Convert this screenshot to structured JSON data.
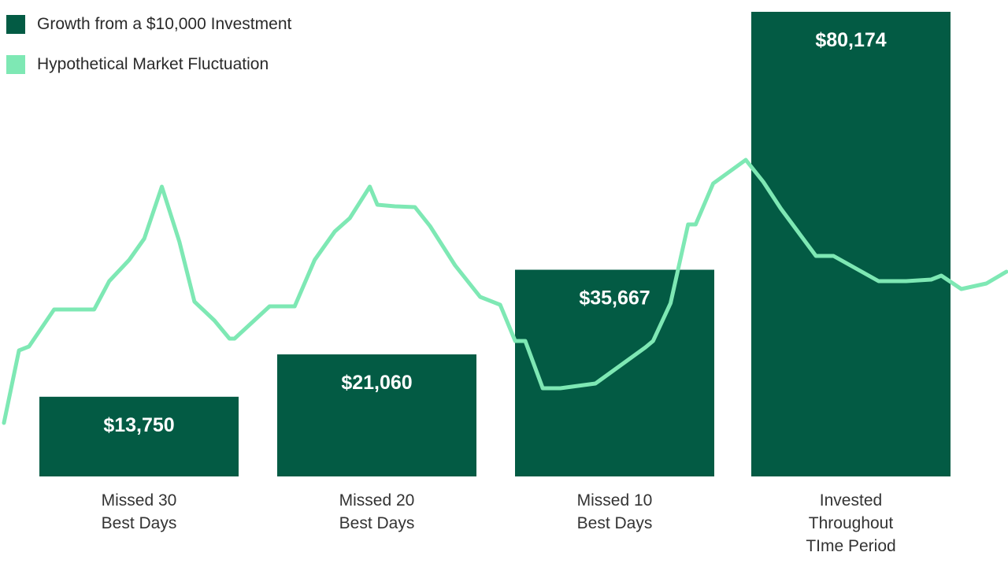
{
  "colors": {
    "bar": "#035b44",
    "line": "#7ee8b4",
    "value_label": "#ffffff",
    "category_label": "#333333"
  },
  "legend": {
    "items": [
      {
        "label": "Growth from a $10,000 Investment",
        "color": "#035b44"
      },
      {
        "label": "Hypothetical Market Fluctuation",
        "color": "#7ee8b4"
      }
    ]
  },
  "chart_data": [
    {
      "type": "bar",
      "title": "",
      "xlabel": "",
      "ylabel": "",
      "ylim": [
        0,
        80174
      ],
      "categories": [
        [
          "Missed 30",
          "Best Days"
        ],
        [
          "Missed 20",
          "Best Days"
        ],
        [
          "Missed 10",
          "Best Days"
        ],
        [
          "Invested",
          "Throughout",
          "TIme Period"
        ]
      ],
      "series": [
        {
          "name": "Growth from a $10,000 Investment",
          "values": [
            13750,
            21060,
            35667,
            80174
          ],
          "data_labels": [
            "$13,750",
            "$21,060",
            "$35,667",
            "$80,174"
          ]
        }
      ],
      "grid": false,
      "legend_placement": "top-left"
    },
    {
      "type": "line",
      "title": "",
      "xlabel": "",
      "ylabel": "",
      "note": "decorative, unscaled; y measured upward, 0 = bar baseline",
      "x": [
        0,
        3,
        5,
        10,
        18,
        21,
        25,
        28,
        31.5,
        35,
        38,
        42,
        45,
        46,
        53,
        58,
        62,
        66,
        69,
        73,
        74.5,
        78,
        82,
        85,
        90,
        95,
        99,
        102,
        104,
        107.5,
        111,
        118,
        128,
        129.5,
        133,
        136.5,
        138,
        141.5,
        148,
        151.5,
        155,
        162,
        165.5,
        174.5,
        180,
        185,
        187,
        191,
        196,
        200
      ],
      "y": [
        68,
        160,
        165,
        212,
        212,
        248,
        275,
        302,
        368,
        298,
        222,
        198,
        175,
        175,
        216,
        216,
        275,
        311,
        328,
        368,
        345,
        343,
        342,
        318,
        268,
        228,
        218,
        172,
        172,
        112,
        112,
        118,
        164,
        172,
        220,
        320,
        320,
        372,
        402,
        374,
        340,
        280,
        280,
        248,
        248,
        250,
        255,
        238,
        245,
        260
      ]
    }
  ]
}
